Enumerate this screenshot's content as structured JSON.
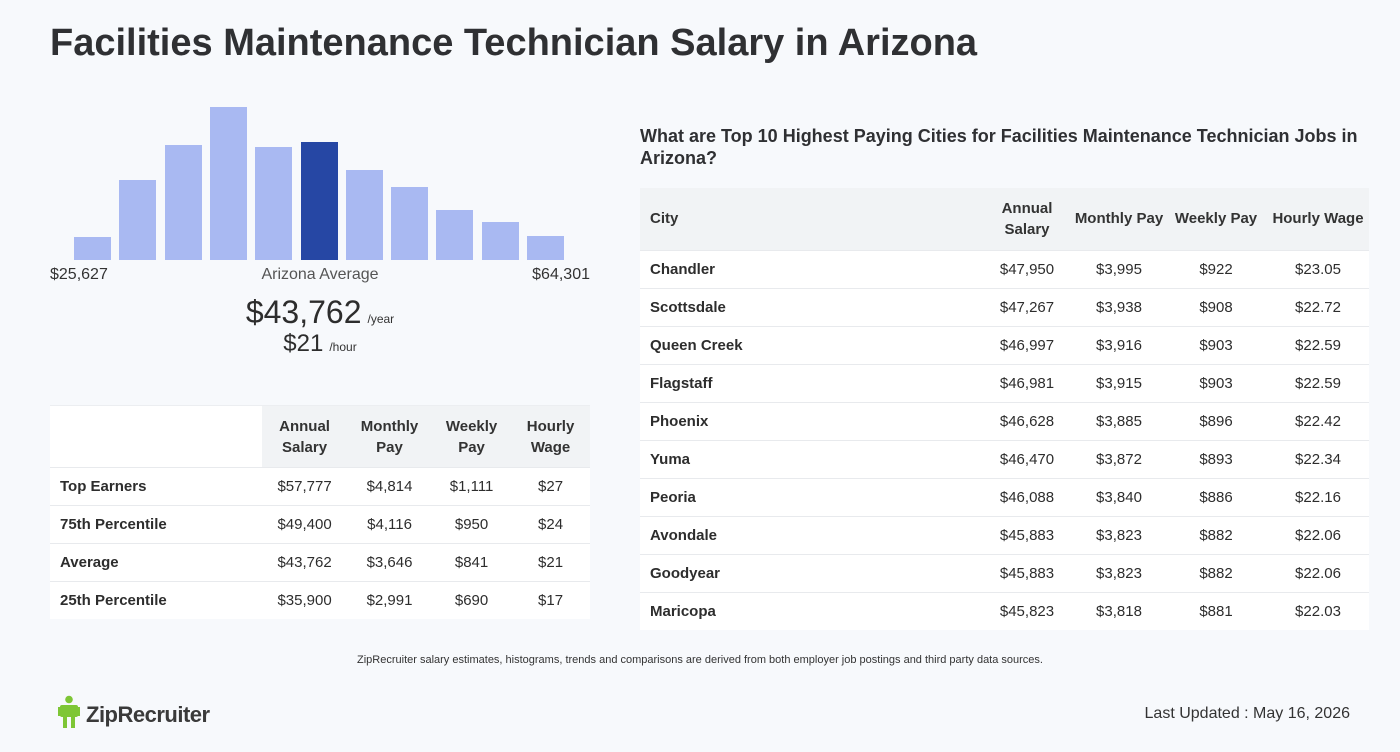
{
  "title": "Facilities Maintenance Technician Salary in Arizona",
  "histogram": {
    "min_label": "$25,627",
    "max_label": "$64,301",
    "center_label": "Arizona Average",
    "bar_heights": [
      0.15,
      0.52,
      0.75,
      1.0,
      0.74,
      0.77,
      0.59,
      0.48,
      0.33,
      0.25,
      0.16
    ],
    "active_index": 5,
    "colors": {
      "bar": "#a9b9f2",
      "active": "#2647a4"
    }
  },
  "average": {
    "annual": "$43,762",
    "annual_unit": "/year",
    "hourly": "$21",
    "hourly_unit": "/hour"
  },
  "percentile_table": {
    "headers": [
      "Annual Salary",
      "Monthly Pay",
      "Weekly Pay",
      "Hourly Wage"
    ],
    "rows": [
      {
        "label": "Top Earners",
        "values": [
          "$57,777",
          "$4,814",
          "$1,111",
          "$27"
        ]
      },
      {
        "label": "75th Percentile",
        "values": [
          "$49,400",
          "$4,116",
          "$950",
          "$24"
        ]
      },
      {
        "label": "Average",
        "values": [
          "$43,762",
          "$3,646",
          "$841",
          "$21"
        ]
      },
      {
        "label": "25th Percentile",
        "values": [
          "$35,900",
          "$2,991",
          "$690",
          "$17"
        ]
      }
    ]
  },
  "cities": {
    "heading": "What are Top 10 Highest Paying Cities for Facilities Maintenance Technician Jobs in Arizona?",
    "headers": [
      "City",
      "Annual Salary",
      "Monthly Pay",
      "Weekly Pay",
      "Hourly Wage"
    ],
    "rows": [
      {
        "city": "Chandler",
        "values": [
          "$47,950",
          "$3,995",
          "$922",
          "$23.05"
        ]
      },
      {
        "city": "Scottsdale",
        "values": [
          "$47,267",
          "$3,938",
          "$908",
          "$22.72"
        ]
      },
      {
        "city": "Queen Creek",
        "values": [
          "$46,997",
          "$3,916",
          "$903",
          "$22.59"
        ]
      },
      {
        "city": "Flagstaff",
        "values": [
          "$46,981",
          "$3,915",
          "$903",
          "$22.59"
        ]
      },
      {
        "city": "Phoenix",
        "values": [
          "$46,628",
          "$3,885",
          "$896",
          "$22.42"
        ]
      },
      {
        "city": "Yuma",
        "values": [
          "$46,470",
          "$3,872",
          "$893",
          "$22.34"
        ]
      },
      {
        "city": "Peoria",
        "values": [
          "$46,088",
          "$3,840",
          "$886",
          "$22.16"
        ]
      },
      {
        "city": "Avondale",
        "values": [
          "$45,883",
          "$3,823",
          "$882",
          "$22.06"
        ]
      },
      {
        "city": "Goodyear",
        "values": [
          "$45,883",
          "$3,823",
          "$882",
          "$22.06"
        ]
      },
      {
        "city": "Maricopa",
        "values": [
          "$45,823",
          "$3,818",
          "$881",
          "$22.03"
        ]
      }
    ]
  },
  "disclaimer": "ZipRecruiter salary estimates, histograms, trends and comparisons are derived from both employer job postings and third party data sources.",
  "logo": {
    "text": "ZipRecruiter",
    "icon": "ziprecruiter-logo-icon",
    "color": "#7ec636"
  },
  "last_updated": "Last Updated : May 16, 2026"
}
